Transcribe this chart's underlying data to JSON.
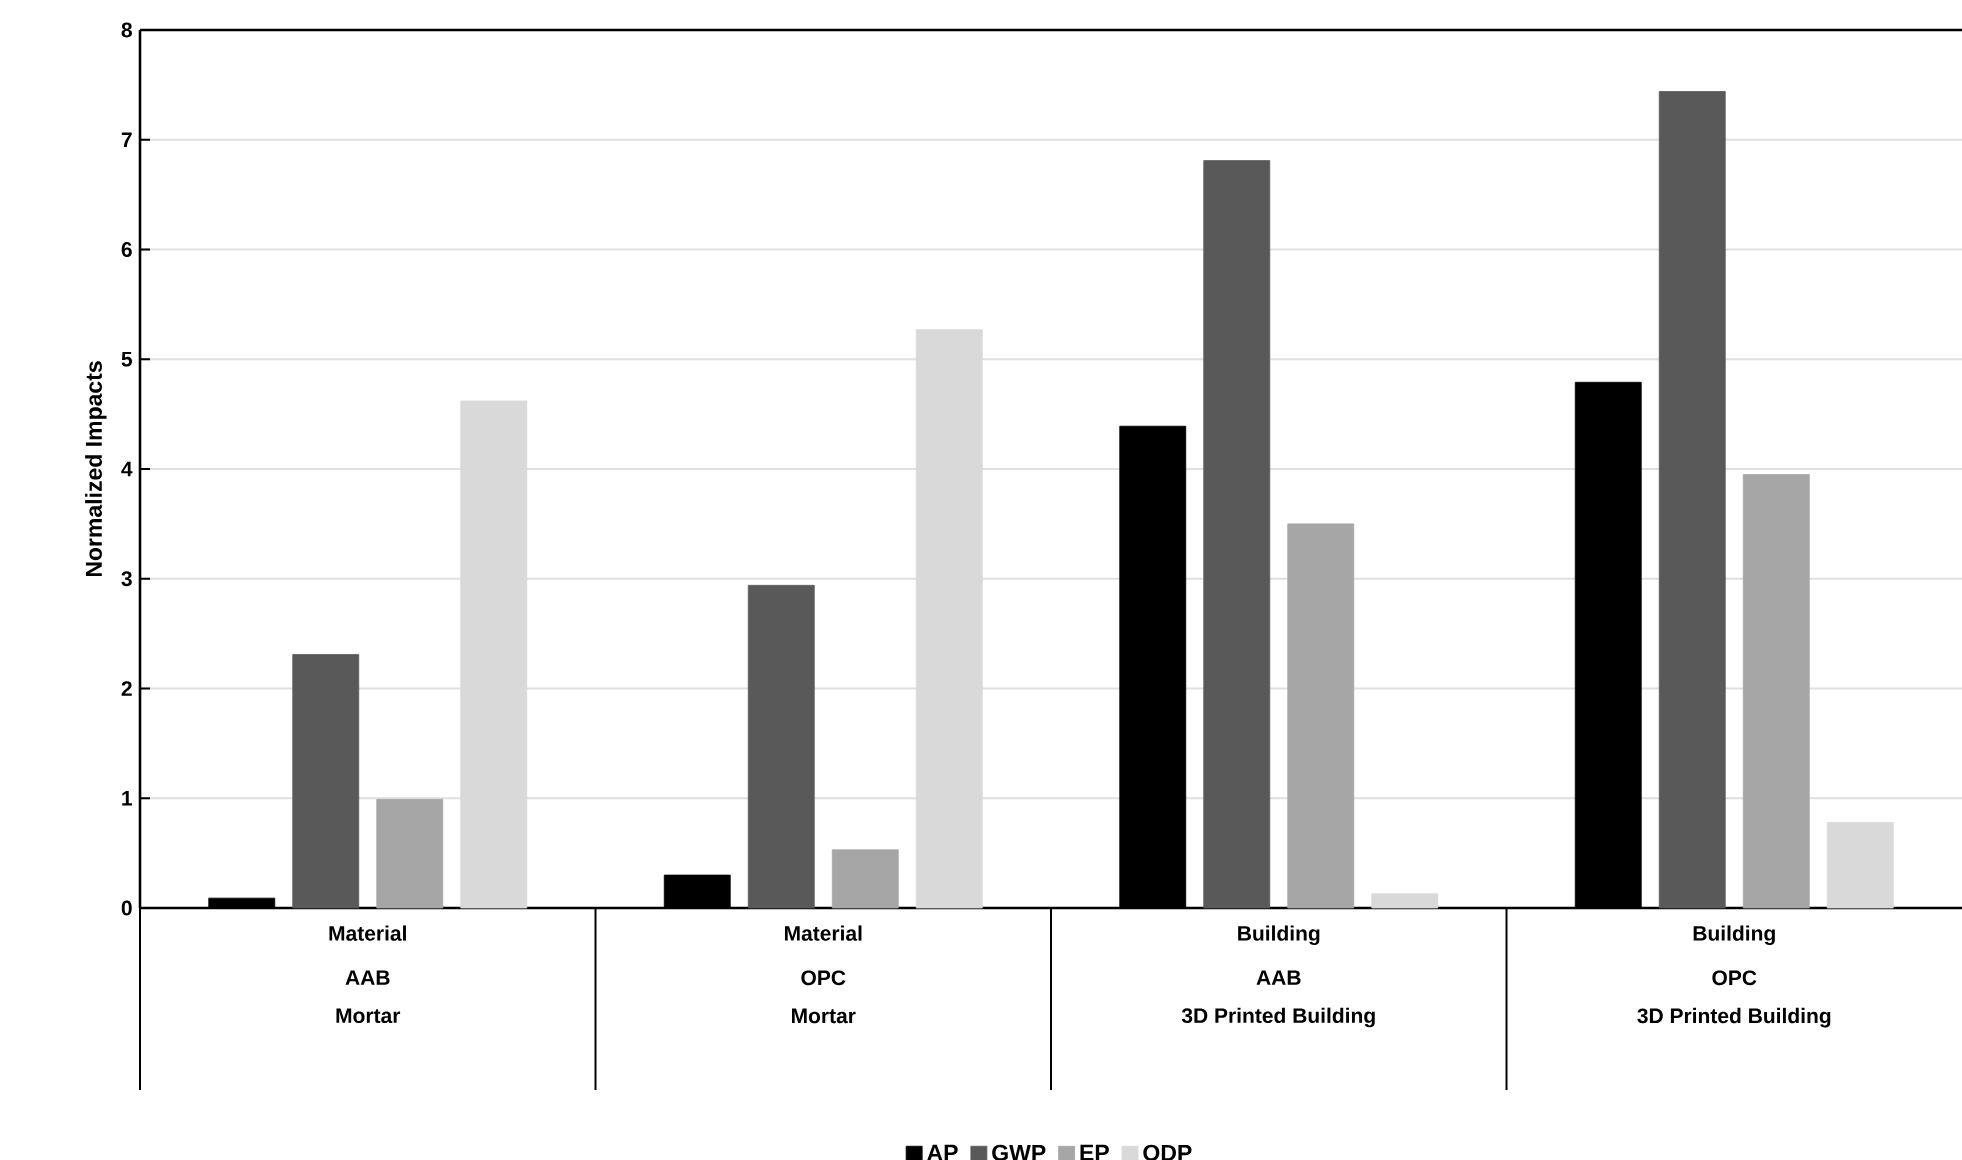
{
  "chart_data": {
    "type": "bar",
    "ylabel": "Normalized Impacts",
    "categories": [
      "AAB Mortar",
      "OPC Mortar",
      "AAB 3D Printed Building",
      "OPC 3D Printed Building"
    ],
    "annotations": [
      "Material",
      "Material",
      "Building",
      "Building"
    ],
    "series": [
      {
        "name": "AP",
        "color": "#000000",
        "values": [
          0.09,
          0.3,
          4.39,
          4.79
        ]
      },
      {
        "name": "GWP",
        "color": "#595959",
        "values": [
          2.31,
          2.94,
          6.81,
          7.44
        ]
      },
      {
        "name": "EP",
        "color": "#a6a6a6",
        "values": [
          0.99,
          0.53,
          3.5,
          3.95
        ]
      },
      {
        "name": "ODP",
        "color": "#d9d9d9",
        "values": [
          4.62,
          5.27,
          0.13,
          0.78
        ]
      }
    ],
    "ylim": [
      0,
      8
    ],
    "yticks": [
      0,
      1,
      2,
      3,
      4,
      5,
      6,
      7,
      8
    ],
    "grid": "y",
    "legend": "bottom"
  }
}
